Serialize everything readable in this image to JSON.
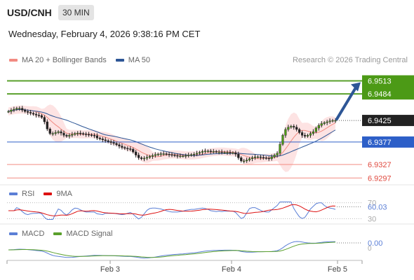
{
  "header": {
    "symbol": "USD/CNH",
    "timeframe": "30 MIN",
    "datetime": "Wednesday, February 4, 2026 9:38:16 PM CET"
  },
  "legend": {
    "ma20": "MA 20 + Bollinger Bands",
    "ma20_color": "#f28b82",
    "ma50": "MA 50",
    "ma50_color": "#2d5696",
    "credit": "Research © 2026 Trading Central"
  },
  "rsi_legend": {
    "rsi": "RSI",
    "rsi_color": "#5b7fd6",
    "ma": "9MA",
    "ma_color": "#dd1111"
  },
  "macd_legend": {
    "macd": "MACD",
    "macd_color": "#5b7fd6",
    "signal": "MACD Signal",
    "signal_color": "#5aa02c"
  },
  "chart_data": {
    "type": "candlestick",
    "x_ticks": [
      "Feb 3",
      "Feb 4",
      "Feb 5"
    ],
    "price": {
      "ylim": [
        6.9285,
        6.9545
      ],
      "last_price": "6.9425",
      "levels": [
        {
          "value": 6.9513,
          "label": "6.9513",
          "style": "resistance"
        },
        {
          "value": 6.9484,
          "label": "6.9484",
          "style": "resistance"
        },
        {
          "value": 6.9377,
          "label": "6.9377",
          "style": "pivot"
        },
        {
          "value": 6.9327,
          "label": "6.9327",
          "style": "support"
        },
        {
          "value": 6.9297,
          "label": "6.9297",
          "style": "support"
        }
      ],
      "close": [
        6.9445,
        6.9448,
        6.945,
        6.9452,
        6.9452,
        6.9448,
        6.9445,
        6.9443,
        6.9441,
        6.9439,
        6.9437,
        6.9436,
        6.9432,
        6.9422,
        6.9406,
        6.9396,
        6.9396,
        6.9398,
        6.94,
        6.9397,
        6.9392,
        6.939,
        6.9392,
        6.9394,
        6.9396,
        6.9397,
        6.9396,
        6.9395,
        6.9394,
        6.9393,
        6.9392,
        6.9391,
        6.9386,
        6.9384,
        6.9382,
        6.938,
        6.9378,
        6.9376,
        6.9374,
        6.9371,
        6.9368,
        6.9365,
        6.9363,
        6.9362,
        6.9361,
        6.9355,
        6.9348,
        6.9342,
        6.934,
        6.9341,
        6.9343,
        6.9345,
        6.9347,
        6.9349,
        6.935,
        6.9351,
        6.9351,
        6.935,
        6.9349,
        6.9348,
        6.9347,
        6.9346,
        6.9346,
        6.9346,
        6.9347,
        6.9348,
        6.9349,
        6.935,
        6.9352,
        6.9354,
        6.9356,
        6.9357,
        6.9357,
        6.9356,
        6.9356,
        6.9355,
        6.9355,
        6.9354,
        6.9354,
        6.9354,
        6.9353,
        6.9353,
        6.935,
        6.9342,
        6.9335,
        6.9335,
        6.9337,
        6.934,
        6.9342,
        6.9344,
        6.9344,
        6.9343,
        6.9342,
        6.9341,
        6.934,
        6.9344,
        6.9348,
        6.9352,
        6.9372,
        6.9392,
        6.9405,
        6.941,
        6.9412,
        6.941,
        6.9405,
        6.9398,
        6.9392,
        6.939,
        6.9392,
        6.9396,
        6.94,
        6.9408,
        6.9414,
        6.9418,
        6.942,
        6.9422,
        6.9424,
        6.9425,
        6.9425
      ]
    },
    "rsi": {
      "ylim": [
        20,
        80
      ],
      "levels": [
        70,
        30
      ],
      "value_label": "60.03"
    },
    "macd": {
      "value_label": "0.00"
    }
  }
}
